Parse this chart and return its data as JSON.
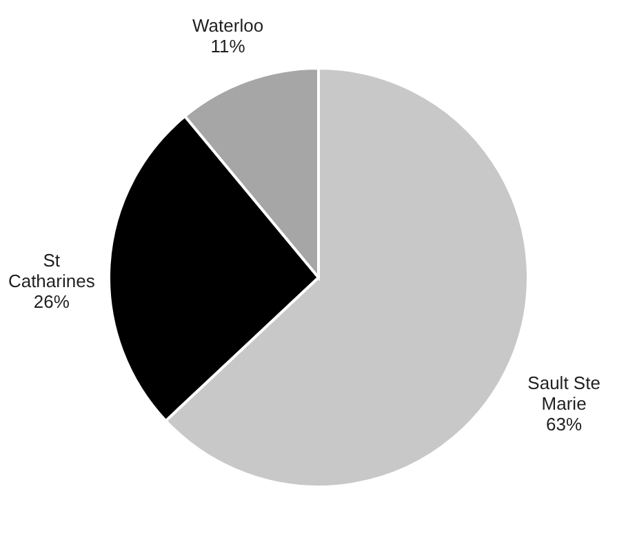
{
  "chart_data": {
    "type": "pie",
    "categories": [
      "Sault Ste Marie",
      "St Catharines",
      "Waterloo"
    ],
    "values": [
      63,
      26,
      11
    ],
    "colors": [
      "#c8c8c8",
      "#000000",
      "#a6a6a6"
    ],
    "value_labels": [
      "63%",
      "26%",
      "11%"
    ],
    "legend": false
  }
}
